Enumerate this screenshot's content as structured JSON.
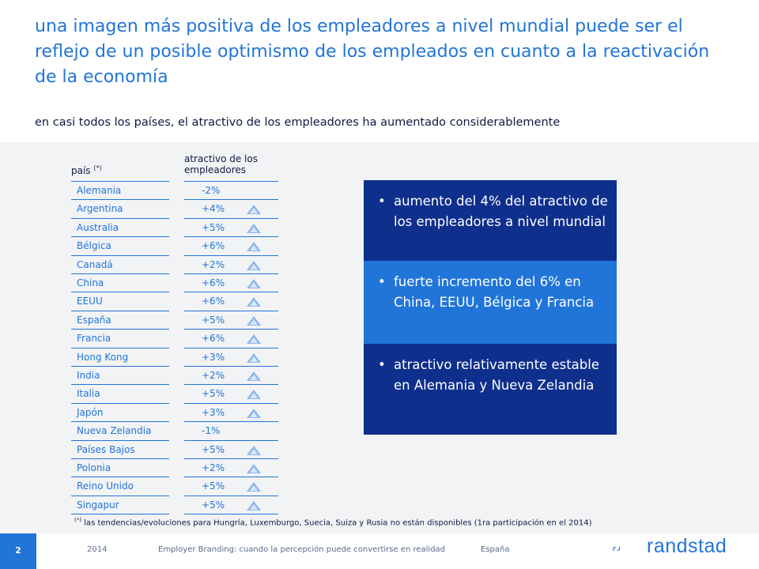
{
  "title": "una imagen más positiva de los empleadores a nivel mundial puede ser el reflejo de un posible optimismo de los empleados en cuanto a la reactivación de la economía",
  "subtitle": "en casi todos los países, el atractivo de los empleadores ha aumentado considerablemente",
  "table": {
    "country_header": "país",
    "country_header_mark": "(*)",
    "value_header": "atractivo de los empleadores",
    "rows": [
      {
        "country": "Alemania",
        "value": "-2%",
        "trend": "none"
      },
      {
        "country": "Argentina",
        "value": "+4%",
        "trend": "up"
      },
      {
        "country": "Australia",
        "value": "+5%",
        "trend": "up"
      },
      {
        "country": "Bélgica",
        "value": "+6%",
        "trend": "up"
      },
      {
        "country": "Canadá",
        "value": "+2%",
        "trend": "up"
      },
      {
        "country": "China",
        "value": "+6%",
        "trend": "up"
      },
      {
        "country": "EEUU",
        "value": "+6%",
        "trend": "up"
      },
      {
        "country": "España",
        "value": "+5%",
        "trend": "up"
      },
      {
        "country": "Francia",
        "value": "+6%",
        "trend": "up"
      },
      {
        "country": "Hong Kong",
        "value": "+3%",
        "trend": "up"
      },
      {
        "country": "India",
        "value": "+2%",
        "trend": "up"
      },
      {
        "country": "Italia",
        "value": "+5%",
        "trend": "up"
      },
      {
        "country": "Japón",
        "value": "+3%",
        "trend": "up"
      },
      {
        "country": "Nueva Zelandia",
        "value": "-1%",
        "trend": "none"
      },
      {
        "country": "Países Bajos",
        "value": "+5%",
        "trend": "up"
      },
      {
        "country": "Polonia",
        "value": "+2%",
        "trend": "up"
      },
      {
        "country": "Reino Unido",
        "value": "+5%",
        "trend": "up"
      },
      {
        "country": "Singapur",
        "value": "+5%",
        "trend": "up"
      }
    ]
  },
  "callouts": [
    {
      "text": "aumento del 4% del atractivo de los empleadores a nivel mundial",
      "color": "#0f2f8c"
    },
    {
      "text": "fuerte incremento del 6% en China, EEUU, Bélgica y Francia",
      "color": "#2175d9"
    },
    {
      "text": "atractivo relativamente estable en Alemania y Nueva Zelandia",
      "color": "#0f2f8c"
    }
  ],
  "bullet_glyph": "•",
  "footnote_mark": "(*)",
  "footnote": "las tendencias/evoluciones para Hungría, Luxemburgo, Suecia, Suiza y Rusia no están disponibles (1ra participación en el 2014)",
  "footer": {
    "page_number": "2",
    "year": "2014",
    "report_title": "Employer Branding: cuando la percepción puede convertirse en realidad",
    "country": "España",
    "brand": "randstad"
  },
  "colors": {
    "accent": "#2175d9",
    "dark_navy": "#0f2f8c",
    "text_dark": "#0f1941"
  }
}
